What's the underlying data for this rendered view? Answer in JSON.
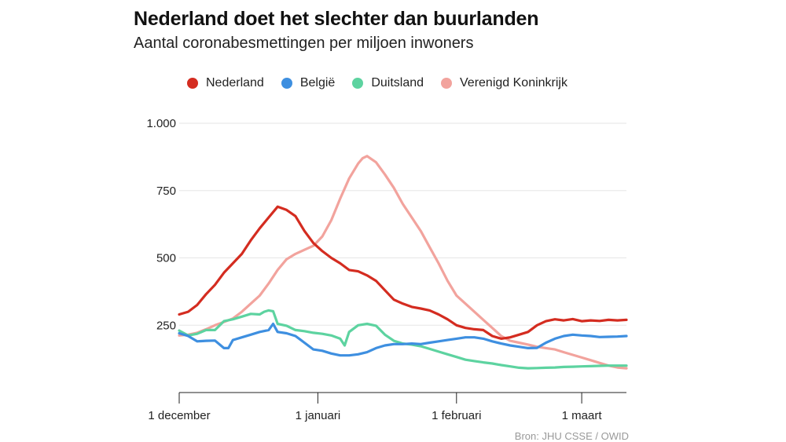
{
  "header": {
    "title": "Nederland doet het slechter dan buurlanden",
    "subtitle": "Aantal coronabesmettingen per miljoen inwoners"
  },
  "source": "Bron: JHU CSSE / OWID",
  "chart_data": {
    "type": "line",
    "title": "Nederland doet het slechter dan buurlanden",
    "subtitle": "Aantal coronabesmettingen per miljoen inwoners",
    "ylim": [
      0,
      1000
    ],
    "y_ticks": [
      250,
      500,
      750,
      1000
    ],
    "y_tick_labels": [
      "250",
      "500",
      "750",
      "1.000"
    ],
    "x_ticks": [
      0,
      31,
      62,
      90
    ],
    "x_tick_labels": [
      "1 december",
      "1 januari",
      "1 februari",
      "1 maart"
    ],
    "xlim": [
      0,
      100
    ],
    "grid": true,
    "legend_position": "top",
    "series": [
      {
        "name": "Nederland",
        "color": "#d42c20",
        "x": [
          0,
          2,
          4,
          6,
          8,
          10,
          12,
          14,
          16,
          18,
          20,
          22,
          24,
          26,
          28,
          30,
          32,
          34,
          36,
          38,
          40,
          42,
          44,
          46,
          48,
          50,
          52,
          54,
          56,
          58,
          60,
          62,
          64,
          66,
          68,
          70,
          72,
          74,
          76,
          78,
          80,
          82,
          84,
          86,
          88,
          90,
          92,
          94,
          96,
          98,
          100
        ],
        "values": [
          290,
          300,
          325,
          365,
          400,
          445,
          480,
          515,
          565,
          610,
          650,
          690,
          678,
          655,
          600,
          555,
          525,
          500,
          480,
          455,
          450,
          435,
          415,
          380,
          345,
          330,
          318,
          312,
          305,
          290,
          272,
          250,
          240,
          235,
          232,
          210,
          200,
          205,
          215,
          225,
          250,
          265,
          272,
          268,
          273,
          265,
          268,
          266,
          270,
          268,
          270
        ]
      },
      {
        "name": "België",
        "color": "#3e8fe0",
        "x": [
          0,
          2,
          4,
          6,
          8,
          10,
          11,
          12,
          14,
          16,
          18,
          20,
          21,
          22,
          24,
          26,
          28,
          30,
          32,
          34,
          36,
          38,
          40,
          42,
          44,
          46,
          48,
          50,
          52,
          54,
          56,
          58,
          60,
          62,
          64,
          66,
          68,
          70,
          72,
          74,
          76,
          78,
          80,
          82,
          84,
          86,
          88,
          90,
          92,
          94,
          96,
          98,
          100
        ],
        "values": [
          220,
          210,
          190,
          192,
          193,
          165,
          165,
          195,
          205,
          215,
          225,
          232,
          255,
          225,
          220,
          210,
          185,
          160,
          155,
          145,
          138,
          138,
          142,
          150,
          165,
          175,
          180,
          180,
          182,
          180,
          185,
          190,
          195,
          200,
          205,
          205,
          200,
          190,
          182,
          175,
          170,
          165,
          166,
          185,
          200,
          210,
          215,
          212,
          210,
          206,
          207,
          208,
          210
        ]
      },
      {
        "name": "Duitsland",
        "color": "#5dd3a0",
        "x": [
          0,
          2,
          4,
          6,
          8,
          10,
          12,
          14,
          16,
          18,
          19,
          20,
          21,
          22,
          24,
          26,
          28,
          30,
          32,
          34,
          36,
          37,
          38,
          40,
          42,
          44,
          46,
          48,
          50,
          52,
          54,
          56,
          58,
          60,
          62,
          64,
          66,
          68,
          70,
          72,
          74,
          76,
          78,
          80,
          82,
          84,
          86,
          88,
          90,
          92,
          94,
          96,
          98,
          100
        ],
        "values": [
          230,
          212,
          218,
          232,
          232,
          265,
          272,
          282,
          292,
          290,
          300,
          305,
          302,
          255,
          248,
          232,
          228,
          222,
          218,
          212,
          200,
          175,
          225,
          250,
          255,
          248,
          215,
          192,
          182,
          178,
          172,
          162,
          152,
          142,
          132,
          122,
          117,
          112,
          108,
          102,
          97,
          92,
          90,
          91,
          92,
          93,
          95,
          96,
          97,
          98,
          99,
          100,
          100,
          100
        ]
      },
      {
        "name": "Verenigd Koninkrijk",
        "color": "#f2a39d",
        "x": [
          0,
          2,
          4,
          6,
          8,
          10,
          12,
          14,
          16,
          18,
          20,
          22,
          24,
          26,
          28,
          30,
          32,
          34,
          36,
          38,
          40,
          41,
          42,
          44,
          46,
          48,
          50,
          52,
          54,
          56,
          58,
          60,
          62,
          64,
          66,
          68,
          70,
          72,
          74,
          76,
          78,
          80,
          82,
          84,
          86,
          88,
          90,
          92,
          94,
          96,
          98,
          100
        ],
        "values": [
          212,
          215,
          222,
          235,
          250,
          262,
          275,
          300,
          330,
          360,
          405,
          455,
          495,
          515,
          530,
          545,
          580,
          640,
          720,
          795,
          850,
          870,
          878,
          855,
          810,
          760,
          700,
          650,
          600,
          540,
          480,
          415,
          360,
          330,
          300,
          270,
          240,
          210,
          192,
          185,
          178,
          170,
          165,
          160,
          150,
          140,
          130,
          120,
          110,
          100,
          93,
          90
        ]
      }
    ]
  }
}
